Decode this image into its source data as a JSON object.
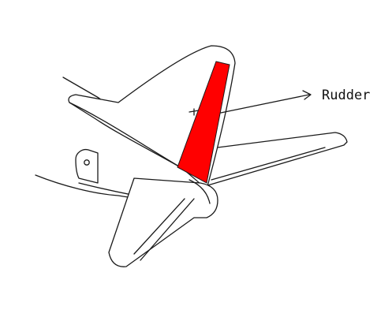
{
  "labels": {
    "rudder": "Rudder"
  },
  "colors": {
    "rudder_fill": "#ff0000",
    "outline": "#1a1a1a",
    "background": "#ffffff"
  }
}
